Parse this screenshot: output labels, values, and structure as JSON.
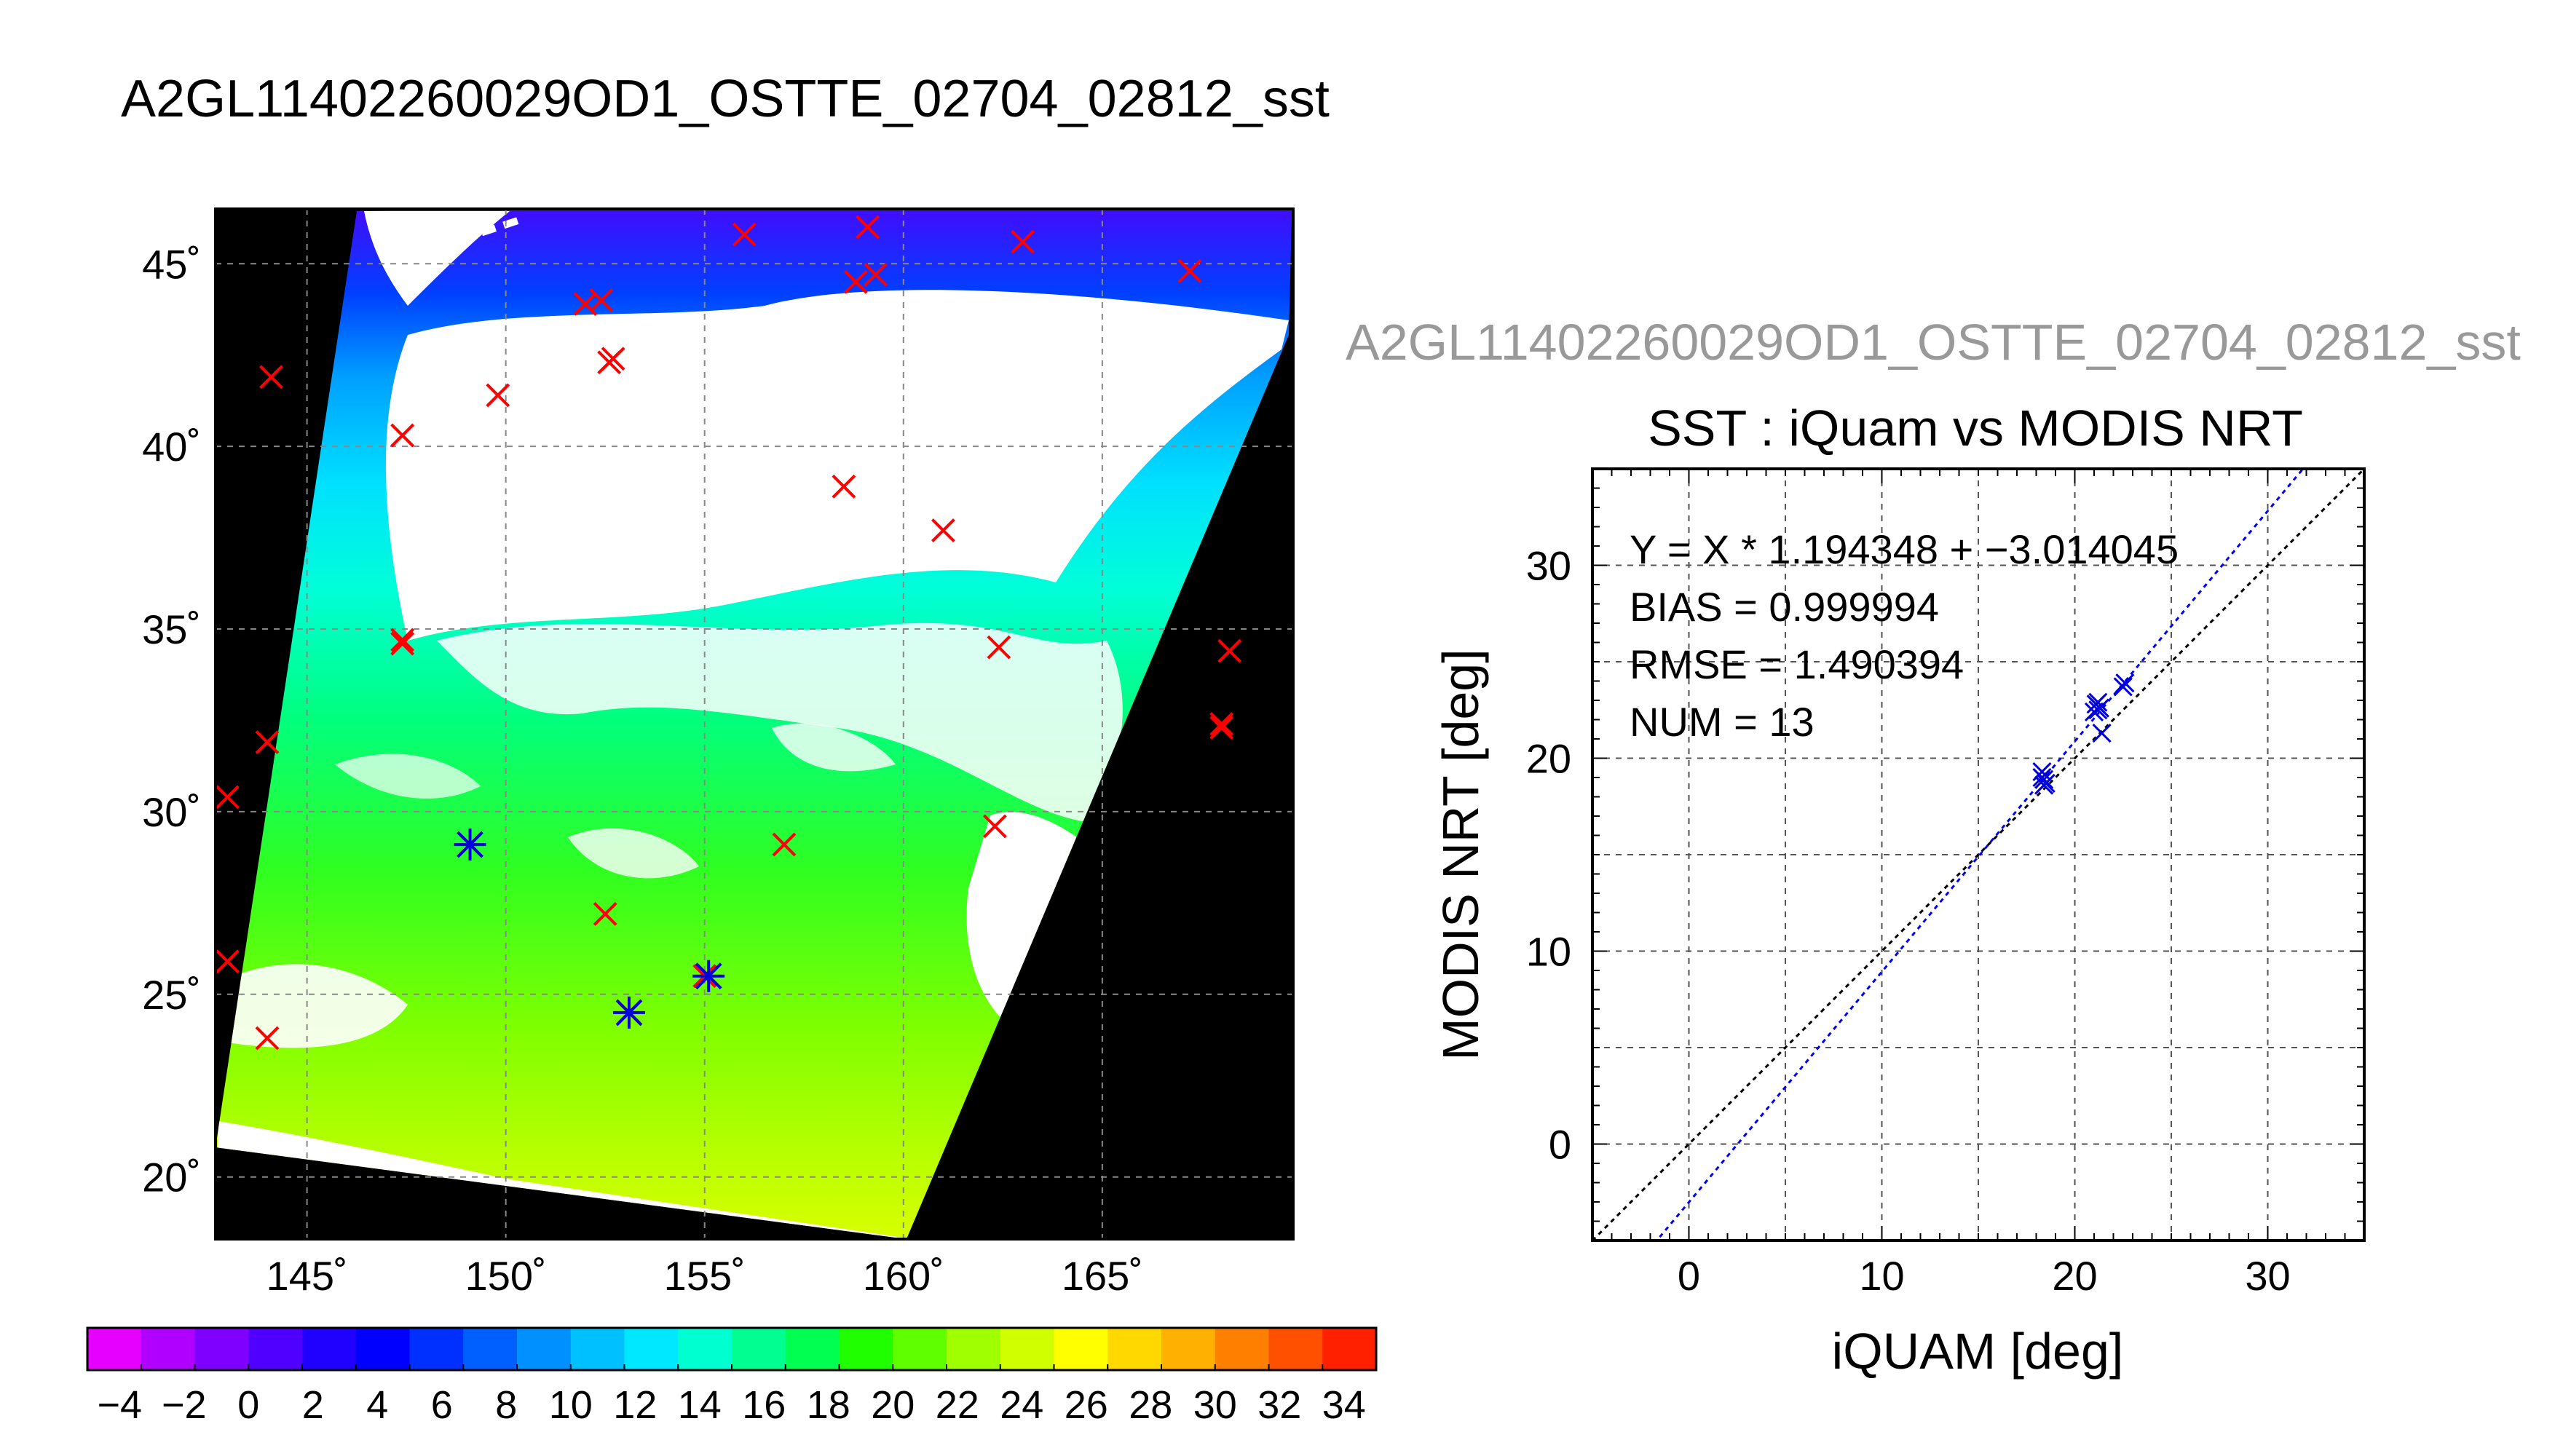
{
  "page_title": "A2GL11402260029OD1_OSTTE_02704_02812_sst",
  "map": {
    "lon_ticks": [
      "145˚",
      "150˚",
      "155˚",
      "160˚",
      "165˚"
    ],
    "lat_ticks": [
      "45˚",
      "40˚",
      "35˚",
      "30˚",
      "25˚",
      "20˚"
    ],
    "colorbar_labels": [
      "−4",
      "−2",
      "0",
      "2",
      "4",
      "6",
      "8",
      "10",
      "12",
      "14",
      "16",
      "18",
      "20",
      "22",
      "24",
      "26",
      "28",
      "30",
      "32",
      "34"
    ],
    "colorbar_colors": [
      "#e600ff",
      "#b000ff",
      "#8000ff",
      "#5000ff",
      "#2000ff",
      "#0000ff",
      "#0030ff",
      "#0060ff",
      "#0090ff",
      "#00c0ff",
      "#00e8ff",
      "#00ffd0",
      "#00ff90",
      "#00ff50",
      "#20ff00",
      "#60ff00",
      "#a0ff00",
      "#d0ff00",
      "#ffff00",
      "#ffd800",
      "#ffb000",
      "#ff8000",
      "#ff5000",
      "#ff2000"
    ]
  },
  "scatter_panel": {
    "overlay_title": "A2GL11402260029OD1_OSTTE_02704_02812_sst",
    "stats": [
      "Y = X * 1.194348 + −3.014045",
      "BIAS = 0.999994",
      "RMSE = 1.490394",
      "NUM = 13"
    ]
  },
  "chart_data": [
    {
      "type": "scatter",
      "title": "A2GL11402260029OD1_OSTTE_02704_02812_sst",
      "description_of_marks": "SST map with in-situ match-up locations",
      "xlim": [
        142.7,
        169.8
      ],
      "ylim": [
        18.3,
        46.5
      ],
      "x_ticks": [
        145,
        150,
        155,
        160,
        165
      ],
      "y_ticks": [
        20,
        25,
        30,
        35,
        40,
        45
      ],
      "colorbar": {
        "min": -5,
        "max": 35,
        "ticks": [
          -4,
          -2,
          0,
          2,
          4,
          6,
          8,
          10,
          12,
          14,
          16,
          18,
          20,
          22,
          24,
          26,
          28,
          30,
          32,
          34
        ]
      },
      "points_red": [
        [
          144.1,
          41.9
        ],
        [
          147.4,
          40.3
        ],
        [
          149.8,
          41.4
        ],
        [
          152.0,
          43.9
        ],
        [
          152.4,
          44.0
        ],
        [
          152.6,
          42.3
        ],
        [
          152.7,
          42.4
        ],
        [
          156.0,
          45.8
        ],
        [
          159.1,
          46.0
        ],
        [
          158.8,
          44.5
        ],
        [
          159.3,
          44.7
        ],
        [
          163.0,
          45.6
        ],
        [
          167.2,
          44.8
        ],
        [
          158.5,
          38.9
        ],
        [
          161.0,
          37.7
        ],
        [
          162.4,
          34.5
        ],
        [
          147.4,
          34.7
        ],
        [
          147.4,
          34.6
        ],
        [
          168.2,
          34.4
        ],
        [
          168.0,
          32.4
        ],
        [
          168.0,
          32.3
        ],
        [
          144.0,
          31.9
        ],
        [
          143.0,
          30.4
        ],
        [
          162.3,
          29.6
        ],
        [
          157.0,
          29.1
        ],
        [
          149.1,
          29.1
        ],
        [
          152.5,
          27.2
        ],
        [
          143.0,
          25.9
        ],
        [
          155.0,
          25.5
        ],
        [
          153.1,
          24.5
        ],
        [
          144.0,
          23.8
        ]
      ],
      "points_blue": [
        [
          149.1,
          29.1
        ],
        [
          153.1,
          24.5
        ],
        [
          155.1,
          25.5
        ]
      ]
    },
    {
      "type": "scatter",
      "title": "SST : iQuam vs MODIS NRT",
      "xlabel": "iQUAM [deg]",
      "ylabel": "MODIS NRT [deg]",
      "xlim": [
        -5,
        35
      ],
      "ylim": [
        -5,
        35
      ],
      "x_ticks": [
        0,
        10,
        20,
        30
      ],
      "y_ticks": [
        0,
        10,
        20,
        30
      ],
      "grid": true,
      "points": [
        [
          18.3,
          19.3
        ],
        [
          18.4,
          18.9
        ],
        [
          18.5,
          18.7
        ],
        [
          18.3,
          19.0
        ],
        [
          21.1,
          22.8
        ],
        [
          21.2,
          22.5
        ],
        [
          21.3,
          22.6
        ],
        [
          21.0,
          22.4
        ],
        [
          21.4,
          21.3
        ],
        [
          22.5,
          23.7
        ],
        [
          22.6,
          23.9
        ],
        [
          21.2,
          22.9
        ],
        [
          18.4,
          18.6
        ]
      ],
      "fit_slope": 1.194348,
      "fit_intercept": -3.014045
    }
  ]
}
